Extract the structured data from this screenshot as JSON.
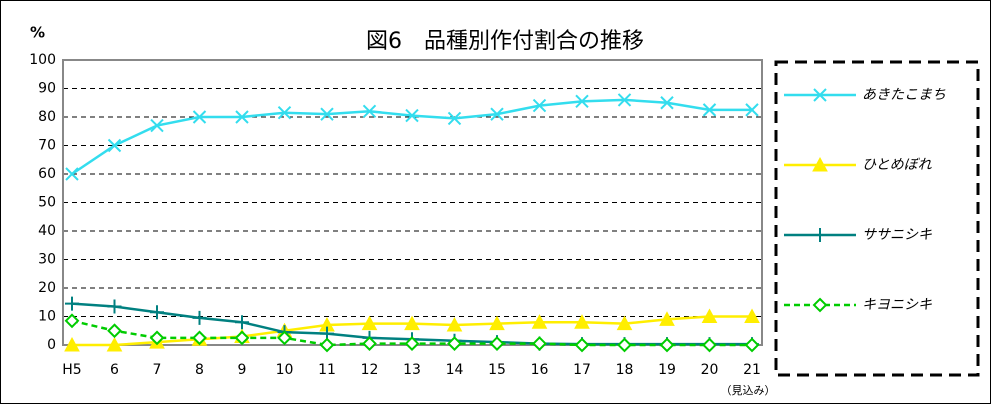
{
  "chart_data": {
    "type": "line",
    "title": "図6　品種別作付割合の推移",
    "y_label": "%",
    "categories": [
      "H5",
      "6",
      "7",
      "8",
      "9",
      "10",
      "11",
      "12",
      "13",
      "14",
      "15",
      "16",
      "17",
      "18",
      "19",
      "20",
      "21"
    ],
    "x_note": "（見込み）",
    "ylim": [
      0,
      100
    ],
    "yticks": [
      0,
      10,
      20,
      30,
      40,
      50,
      60,
      70,
      80,
      90,
      100
    ],
    "grid": true,
    "legend": "right",
    "series": [
      {
        "name": "あきたこまち",
        "color": "#33ddee",
        "marker": "cross",
        "dash": false,
        "values": [
          60,
          70,
          77,
          80,
          80,
          81.5,
          81,
          82,
          80.5,
          79.5,
          81,
          84,
          85.5,
          86,
          85,
          82.5,
          82.5
        ]
      },
      {
        "name": "ひとめぼれ",
        "color": "#ffee00",
        "marker": "triangle",
        "dash": false,
        "values": [
          0,
          0,
          1,
          2,
          3,
          5,
          7,
          7.5,
          7.5,
          7,
          7.5,
          8,
          8,
          7.5,
          9,
          10,
          10
        ]
      },
      {
        "name": "ササニシキ",
        "color": "#008080",
        "marker": "plus",
        "dash": false,
        "values": [
          14.5,
          13.5,
          11.5,
          9.5,
          8,
          4.5,
          4,
          2.5,
          2,
          1.5,
          1,
          0.5,
          0.3,
          0.3,
          0.3,
          0.3,
          0.3
        ]
      },
      {
        "name": "キヨニシキ",
        "color": "#00cc00",
        "marker": "diamond",
        "dash": true,
        "values": [
          8.5,
          5,
          2.5,
          2.5,
          2.5,
          2.5,
          0,
          0.5,
          0.5,
          0.5,
          0.5,
          0.5,
          0,
          0,
          0,
          0,
          0
        ]
      }
    ]
  }
}
